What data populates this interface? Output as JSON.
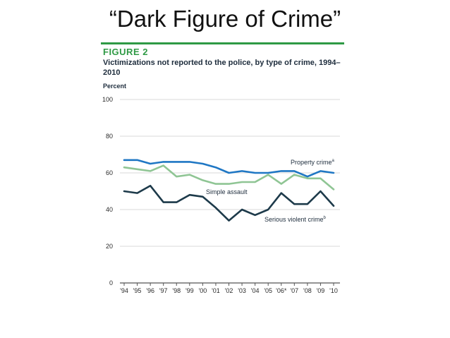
{
  "slide": {
    "title": "“Dark Figure of Crime”"
  },
  "figure": {
    "label": "FIGURE 2",
    "caption": "Victimizations not reported to the police, by type of crime, 1994–2010"
  },
  "chart_data": {
    "type": "line",
    "title": "Victimizations not reported to the police, by type of crime, 1994–2010",
    "ylabel": "Percent",
    "xlabel": "",
    "ylim": [
      0,
      100
    ],
    "yticks": [
      0,
      20,
      40,
      60,
      80,
      100
    ],
    "grid": true,
    "categories": [
      "'94",
      "'95",
      "'96",
      "'97",
      "'98",
      "'99",
      "'00",
      "'01",
      "'02",
      "'03",
      "'04",
      "'05",
      "'06*",
      "'07",
      "'08",
      "'09",
      "'10"
    ],
    "series": [
      {
        "name": "Property crime",
        "superscript": "a",
        "color": "#1f77c4",
        "values": [
          67,
          67,
          65,
          66,
          66,
          66,
          65,
          63,
          60,
          61,
          60,
          60,
          61,
          61,
          58,
          61,
          60
        ]
      },
      {
        "name": "Simple assault",
        "superscript": "",
        "color": "#8fc594",
        "values": [
          63,
          62,
          61,
          64,
          58,
          59,
          56,
          54,
          54,
          55,
          55,
          59,
          54,
          59,
          57,
          57,
          51
        ]
      },
      {
        "name": "Serious violent crime",
        "superscript": "b",
        "color": "#1d3a4a",
        "values": [
          50,
          49,
          53,
          44,
          44,
          48,
          47,
          41,
          34,
          40,
          37,
          40,
          49,
          43,
          43,
          50,
          42
        ]
      }
    ]
  }
}
